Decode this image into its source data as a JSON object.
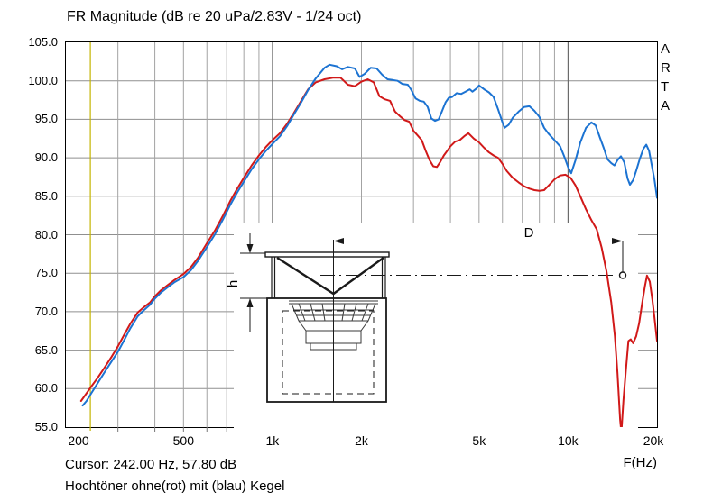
{
  "title": "FR Magnitude (dB re 20 uPa/2.83V - 1/24 oct)",
  "watermark": [
    "A",
    "R",
    "T",
    "A"
  ],
  "footer": {
    "cursor_line": "Cursor: 242.00 Hz, 57.80 dB",
    "legend_line": "Hochtöner ohne(rot) mit (blau) Kegel",
    "xaxis_unit": "F(Hz)"
  },
  "inset": {
    "dim_width_label": "D",
    "dim_height_label": "h"
  },
  "colors": {
    "red_curve": "#d11919",
    "blue_curve": "#1c73d2",
    "cursor": "#c4b400",
    "grid_minor": "#a3a3a3",
    "grid_major": "#6b6b6b",
    "grid_horizontal": "#8f8f8f",
    "axis_frame": "#000000",
    "diagram_line": "#1a1a1a"
  },
  "chart_data": {
    "type": "line",
    "title": "FR Magnitude (dB re 20 uPa/2.83V - 1/24 oct)",
    "xlabel": "F(Hz)",
    "ylabel": "dB",
    "x_scale": "log",
    "xlim": [
      200,
      20000
    ],
    "ylim": [
      55,
      105
    ],
    "grid": true,
    "legend_position": "none",
    "yticks": [
      {
        "value": 105,
        "label": "105.0"
      },
      {
        "value": 100,
        "label": "100.0"
      },
      {
        "value": 95,
        "label": "95.0"
      },
      {
        "value": 90,
        "label": "90.0"
      },
      {
        "value": 85,
        "label": "85.0"
      },
      {
        "value": 80,
        "label": "80.0"
      },
      {
        "value": 75,
        "label": "75.0"
      },
      {
        "value": 70,
        "label": "70.0"
      },
      {
        "value": 65,
        "label": "65.0"
      },
      {
        "value": 60,
        "label": "60.0"
      },
      {
        "value": 55,
        "label": "55.0"
      }
    ],
    "xticks_major": [
      {
        "value": 200,
        "label": "200"
      },
      {
        "value": 500,
        "label": "500"
      },
      {
        "value": 1000,
        "label": "1k"
      },
      {
        "value": 2000,
        "label": "2k"
      },
      {
        "value": 5000,
        "label": "5k"
      },
      {
        "value": 10000,
        "label": "10k"
      },
      {
        "value": 20000,
        "label": "20k"
      }
    ],
    "xticks_minor": [
      300,
      400,
      600,
      700,
      800,
      900,
      3000,
      4000,
      6000,
      7000,
      8000,
      9000
    ],
    "x_emphasis": [
      1000,
      10000
    ],
    "cursor": {
      "hz": 242.0,
      "db": 57.8
    },
    "series": [
      {
        "name": "Hochtöner ohne Kegel",
        "color": "#d11919",
        "points": [
          [
            225,
            58.4
          ],
          [
            232,
            59.1
          ],
          [
            242,
            60.1
          ],
          [
            255,
            61.3
          ],
          [
            270,
            62.7
          ],
          [
            285,
            64.1
          ],
          [
            300,
            65.5
          ],
          [
            315,
            67.0
          ],
          [
            330,
            68.4
          ],
          [
            350,
            69.9
          ],
          [
            365,
            70.5
          ],
          [
            385,
            71.2
          ],
          [
            400,
            72.0
          ],
          [
            420,
            72.8
          ],
          [
            440,
            73.4
          ],
          [
            465,
            74.1
          ],
          [
            500,
            74.9
          ],
          [
            530,
            75.8
          ],
          [
            560,
            77.0
          ],
          [
            600,
            78.9
          ],
          [
            640,
            80.6
          ],
          [
            680,
            82.5
          ],
          [
            720,
            84.4
          ],
          [
            760,
            86.0
          ],
          [
            800,
            87.4
          ],
          [
            850,
            89.0
          ],
          [
            900,
            90.3
          ],
          [
            950,
            91.4
          ],
          [
            1000,
            92.3
          ],
          [
            1060,
            93.2
          ],
          [
            1120,
            94.4
          ],
          [
            1180,
            95.8
          ],
          [
            1250,
            97.4
          ],
          [
            1320,
            98.9
          ],
          [
            1400,
            99.8
          ],
          [
            1500,
            100.2
          ],
          [
            1600,
            100.4
          ],
          [
            1700,
            100.4
          ],
          [
            1800,
            99.5
          ],
          [
            1900,
            99.3
          ],
          [
            2000,
            99.9
          ],
          [
            2100,
            100.2
          ],
          [
            2200,
            99.8
          ],
          [
            2300,
            98.0
          ],
          [
            2400,
            97.6
          ],
          [
            2500,
            97.4
          ],
          [
            2600,
            96.0
          ],
          [
            2700,
            95.4
          ],
          [
            2800,
            94.9
          ],
          [
            2900,
            94.7
          ],
          [
            3000,
            93.5
          ],
          [
            3100,
            92.9
          ],
          [
            3200,
            92.3
          ],
          [
            3300,
            90.9
          ],
          [
            3400,
            89.7
          ],
          [
            3500,
            88.9
          ],
          [
            3600,
            88.8
          ],
          [
            3700,
            89.5
          ],
          [
            3800,
            90.3
          ],
          [
            3900,
            90.9
          ],
          [
            4000,
            91.5
          ],
          [
            4150,
            92.1
          ],
          [
            4300,
            92.3
          ],
          [
            4450,
            92.8
          ],
          [
            4600,
            93.2
          ],
          [
            4800,
            92.5
          ],
          [
            5000,
            92.0
          ],
          [
            5200,
            91.3
          ],
          [
            5400,
            90.7
          ],
          [
            5600,
            90.3
          ],
          [
            5800,
            90.0
          ],
          [
            6000,
            89.2
          ],
          [
            6200,
            88.3
          ],
          [
            6500,
            87.4
          ],
          [
            6800,
            86.8
          ],
          [
            7100,
            86.3
          ],
          [
            7400,
            86.0
          ],
          [
            7700,
            85.8
          ],
          [
            8000,
            85.7
          ],
          [
            8300,
            85.8
          ],
          [
            8600,
            86.4
          ],
          [
            9000,
            87.2
          ],
          [
            9400,
            87.7
          ],
          [
            9800,
            87.8
          ],
          [
            10200,
            87.4
          ],
          [
            10600,
            86.4
          ],
          [
            11000,
            85.0
          ],
          [
            11500,
            83.3
          ],
          [
            12000,
            81.9
          ],
          [
            12500,
            80.7
          ],
          [
            13000,
            78.3
          ],
          [
            13500,
            75.2
          ],
          [
            14000,
            71.2
          ],
          [
            14400,
            66.8
          ],
          [
            14700,
            62.0
          ],
          [
            15000,
            56.0
          ],
          [
            15150,
            54.3
          ],
          [
            15400,
            58.5
          ],
          [
            15700,
            62.5
          ],
          [
            16000,
            66.2
          ],
          [
            16300,
            66.4
          ],
          [
            16600,
            65.9
          ],
          [
            17000,
            66.8
          ],
          [
            17400,
            68.5
          ],
          [
            17800,
            71.0
          ],
          [
            18200,
            73.3
          ],
          [
            18500,
            74.7
          ],
          [
            18900,
            73.9
          ],
          [
            19300,
            71.5
          ],
          [
            19600,
            69.3
          ],
          [
            20000,
            66.2
          ]
        ]
      },
      {
        "name": "Hochtöner mit Kegel",
        "color": "#1c73d2",
        "points": [
          [
            228,
            57.8
          ],
          [
            235,
            58.4
          ],
          [
            242,
            59.2
          ],
          [
            255,
            60.6
          ],
          [
            270,
            62.1
          ],
          [
            285,
            63.5
          ],
          [
            300,
            64.8
          ],
          [
            315,
            66.3
          ],
          [
            330,
            67.8
          ],
          [
            350,
            69.4
          ],
          [
            365,
            70.1
          ],
          [
            385,
            70.9
          ],
          [
            400,
            71.7
          ],
          [
            420,
            72.5
          ],
          [
            440,
            73.1
          ],
          [
            465,
            73.8
          ],
          [
            500,
            74.5
          ],
          [
            530,
            75.4
          ],
          [
            560,
            76.6
          ],
          [
            600,
            78.4
          ],
          [
            640,
            80.1
          ],
          [
            680,
            82.0
          ],
          [
            720,
            83.9
          ],
          [
            760,
            85.5
          ],
          [
            800,
            86.9
          ],
          [
            850,
            88.5
          ],
          [
            900,
            89.8
          ],
          [
            950,
            90.9
          ],
          [
            1000,
            91.8
          ],
          [
            1060,
            92.8
          ],
          [
            1120,
            94.1
          ],
          [
            1180,
            95.6
          ],
          [
            1250,
            97.2
          ],
          [
            1320,
            98.8
          ],
          [
            1400,
            100.3
          ],
          [
            1500,
            101.7
          ],
          [
            1560,
            102.1
          ],
          [
            1650,
            101.9
          ],
          [
            1720,
            101.5
          ],
          [
            1800,
            101.8
          ],
          [
            1900,
            101.6
          ],
          [
            1970,
            100.5
          ],
          [
            2050,
            100.9
          ],
          [
            2150,
            101.7
          ],
          [
            2250,
            101.6
          ],
          [
            2350,
            100.8
          ],
          [
            2450,
            100.2
          ],
          [
            2550,
            100.1
          ],
          [
            2650,
            100.0
          ],
          [
            2750,
            99.6
          ],
          [
            2870,
            99.5
          ],
          [
            2950,
            98.8
          ],
          [
            3050,
            97.7
          ],
          [
            3150,
            97.4
          ],
          [
            3250,
            97.3
          ],
          [
            3350,
            96.6
          ],
          [
            3450,
            95.1
          ],
          [
            3550,
            94.8
          ],
          [
            3650,
            95.0
          ],
          [
            3750,
            96.1
          ],
          [
            3850,
            97.2
          ],
          [
            3950,
            97.8
          ],
          [
            4050,
            97.9
          ],
          [
            4200,
            98.4
          ],
          [
            4350,
            98.3
          ],
          [
            4500,
            98.6
          ],
          [
            4650,
            98.9
          ],
          [
            4750,
            98.6
          ],
          [
            4900,
            99.0
          ],
          [
            5000,
            99.4
          ],
          [
            5200,
            98.9
          ],
          [
            5400,
            98.5
          ],
          [
            5600,
            97.9
          ],
          [
            5800,
            96.3
          ],
          [
            6000,
            94.6
          ],
          [
            6100,
            93.9
          ],
          [
            6300,
            94.3
          ],
          [
            6500,
            95.2
          ],
          [
            6800,
            96.0
          ],
          [
            7100,
            96.6
          ],
          [
            7400,
            96.7
          ],
          [
            7700,
            96.1
          ],
          [
            8000,
            95.3
          ],
          [
            8300,
            93.9
          ],
          [
            8600,
            93.1
          ],
          [
            9000,
            92.3
          ],
          [
            9400,
            91.5
          ],
          [
            9700,
            90.2
          ],
          [
            10000,
            88.8
          ],
          [
            10250,
            88.0
          ],
          [
            10600,
            89.7
          ],
          [
            11000,
            92.0
          ],
          [
            11500,
            93.9
          ],
          [
            12000,
            94.6
          ],
          [
            12400,
            94.2
          ],
          [
            12800,
            92.7
          ],
          [
            13200,
            91.3
          ],
          [
            13600,
            89.8
          ],
          [
            14000,
            89.3
          ],
          [
            14350,
            89.0
          ],
          [
            14700,
            89.7
          ],
          [
            15100,
            90.2
          ],
          [
            15500,
            89.4
          ],
          [
            15900,
            87.3
          ],
          [
            16200,
            86.5
          ],
          [
            16600,
            87.1
          ],
          [
            17000,
            88.3
          ],
          [
            17500,
            89.9
          ],
          [
            18000,
            91.2
          ],
          [
            18400,
            91.7
          ],
          [
            18800,
            90.9
          ],
          [
            19200,
            89.0
          ],
          [
            19600,
            87.2
          ],
          [
            20000,
            84.8
          ]
        ]
      }
    ]
  }
}
